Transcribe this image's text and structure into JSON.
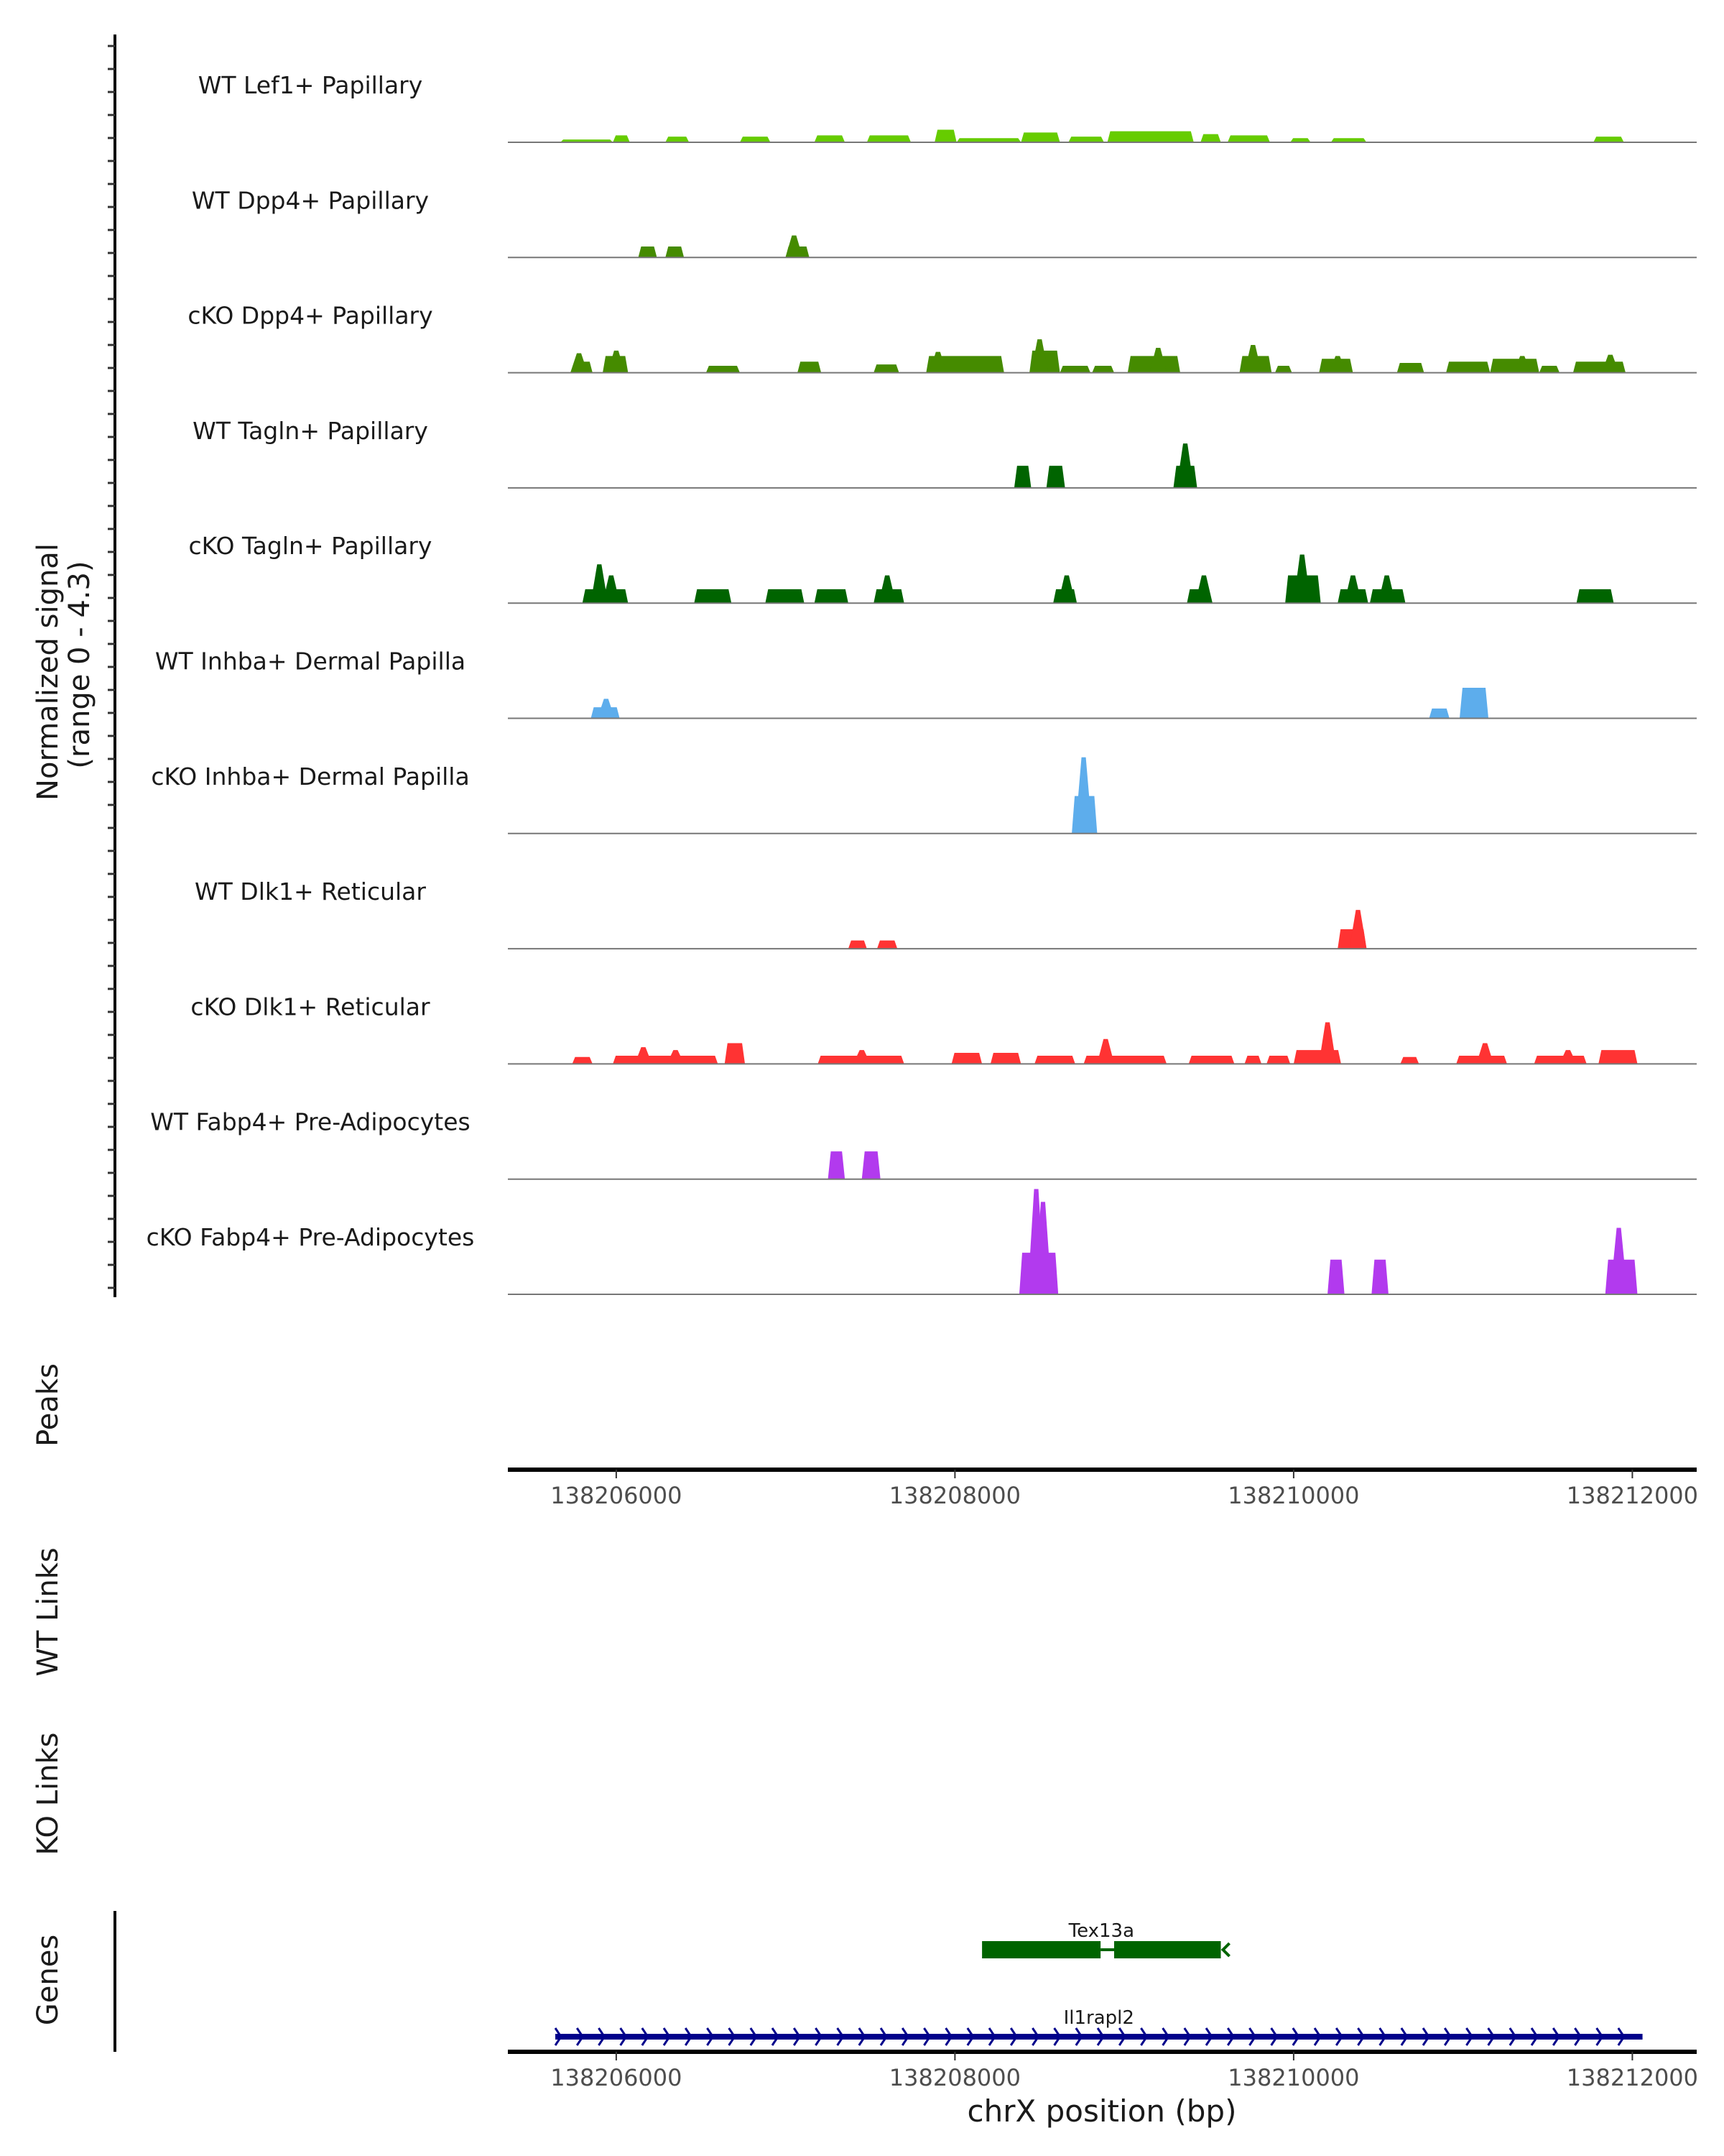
{
  "chart_data": {
    "type": "area",
    "title": "",
    "ylabel_line1": "Normalized signal",
    "ylabel_line2": "(range 0 - 4.3)",
    "xlabel": "chrX position (bp)",
    "ylim": [
      0,
      4.3
    ],
    "xlim": [
      138205360,
      138212380
    ],
    "x_ticks": [
      "138206000",
      "138208000",
      "138210000",
      "138212000"
    ],
    "x_tick_values": [
      138206000,
      138208000,
      138210000,
      138212000
    ],
    "panel_labels": {
      "peaks": "Peaks",
      "wt_links": "WT Links",
      "ko_links": "KO Links",
      "genes": "Genes"
    },
    "tracks": [
      {
        "name": "WT Lef1+ Papillary",
        "color": "#66CC00",
        "segments": [
          [
            138205670,
            138205980,
            0.11
          ],
          [
            138205980,
            138206080,
            0.27
          ],
          [
            138206290,
            138206430,
            0.22
          ],
          [
            138206730,
            138206910,
            0.22
          ],
          [
            138207170,
            138207350,
            0.27
          ],
          [
            138207480,
            138207740,
            0.27
          ],
          [
            138207880,
            138208010,
            0.49
          ],
          [
            138208010,
            138208390,
            0.16
          ],
          [
            138208390,
            138208620,
            0.38
          ],
          [
            138208670,
            138208880,
            0.22
          ],
          [
            138208900,
            138209410,
            0.43
          ],
          [
            138209450,
            138209570,
            0.32
          ],
          [
            138209610,
            138209860,
            0.27
          ],
          [
            138209980,
            138210100,
            0.16
          ],
          [
            138210220,
            138210430,
            0.16
          ],
          [
            138211770,
            138211950,
            0.22
          ]
        ],
        "spikes": []
      },
      {
        "name": "WT Dpp4+ Papillary",
        "color": "#458B00",
        "segments": [
          [
            138206130,
            138206240,
            0.43
          ],
          [
            138206290,
            138206400,
            0.43
          ],
          [
            138207000,
            138207140,
            0.43
          ]
        ],
        "spikes": [
          [
            138207050,
            0.86
          ]
        ]
      },
      {
        "name": "cKO Dpp4+ Papillary",
        "color": "#458B00",
        "segments": [
          [
            138205740,
            138205860,
            0.43
          ],
          [
            138205920,
            138206070,
            0.65
          ],
          [
            138206530,
            138206730,
            0.27
          ],
          [
            138207070,
            138207210,
            0.43
          ],
          [
            138207520,
            138207670,
            0.32
          ],
          [
            138207830,
            138208290,
            0.65
          ],
          [
            138208440,
            138208620,
            0.86
          ],
          [
            138208620,
            138208800,
            0.27
          ],
          [
            138208810,
            138208940,
            0.27
          ],
          [
            138209020,
            138209330,
            0.65
          ],
          [
            138209680,
            138209870,
            0.65
          ],
          [
            138209890,
            138209990,
            0.27
          ],
          [
            138210150,
            138210350,
            0.54
          ],
          [
            138210610,
            138210770,
            0.38
          ],
          [
            138210900,
            138211160,
            0.43
          ],
          [
            138211160,
            138211450,
            0.54
          ],
          [
            138211450,
            138211570,
            0.27
          ],
          [
            138211650,
            138211960,
            0.43
          ]
        ],
        "spikes": [
          [
            138205780,
            0.76
          ],
          [
            138206000,
            0.86
          ],
          [
            138207900,
            0.81
          ],
          [
            138208500,
            1.3
          ],
          [
            138209200,
            0.97
          ],
          [
            138209760,
            1.08
          ],
          [
            138210260,
            0.65
          ],
          [
            138211350,
            0.65
          ],
          [
            138211870,
            0.7
          ]
        ]
      },
      {
        "name": "WT Tagln+ Papillary",
        "color": "#006400",
        "segments": [
          [
            138208350,
            138208450,
            0.86
          ],
          [
            138208540,
            138208650,
            0.86
          ],
          [
            138209290,
            138209430,
            0.86
          ]
        ],
        "spikes": [
          [
            138209360,
            1.73
          ]
        ]
      },
      {
        "name": "cKO Tagln+ Papillary",
        "color": "#006400",
        "segments": [
          [
            138205800,
            138206070,
            0.54
          ],
          [
            138206460,
            138206680,
            0.54
          ],
          [
            138206880,
            138207110,
            0.54
          ],
          [
            138207170,
            138207370,
            0.54
          ],
          [
            138207520,
            138207700,
            0.54
          ],
          [
            138208580,
            138208720,
            0.54
          ],
          [
            138209370,
            138209510,
            0.54
          ],
          [
            138209950,
            138210160,
            1.08
          ],
          [
            138210260,
            138210440,
            0.54
          ],
          [
            138210450,
            138210660,
            0.54
          ],
          [
            138211670,
            138211890,
            0.54
          ]
        ],
        "spikes": [
          [
            138205900,
            1.51
          ],
          [
            138205970,
            1.08
          ],
          [
            138207600,
            1.08
          ],
          [
            138208660,
            1.08
          ],
          [
            138209470,
            1.08
          ],
          [
            138210050,
            1.89
          ],
          [
            138210350,
            1.08
          ],
          [
            138210550,
            1.08
          ]
        ]
      },
      {
        "name": "WT Inhba+ Dermal Papilla",
        "color": "#5DADEC",
        "segments": [
          [
            138205850,
            138206020,
            0.43
          ],
          [
            138210800,
            138210920,
            0.38
          ],
          [
            138210980,
            138211150,
            1.19
          ]
        ],
        "spikes": [
          [
            138205940,
            0.76
          ]
        ]
      },
      {
        "name": "cKO Inhba+ Dermal Papilla",
        "color": "#5DADEC",
        "segments": [
          [
            138208690,
            138208840,
            1.46
          ]
        ],
        "spikes": [
          [
            138208760,
            2.97
          ]
        ]
      },
      {
        "name": "WT Dlk1+ Reticular",
        "color": "#FF3333",
        "segments": [
          [
            138207370,
            138207480,
            0.32
          ],
          [
            138207540,
            138207660,
            0.32
          ],
          [
            138210260,
            138210430,
            0.76
          ]
        ],
        "spikes": [
          [
            138210380,
            1.51
          ]
        ]
      },
      {
        "name": "cKO Dlk1+ Reticular",
        "color": "#FF3333",
        "segments": [
          [
            138205740,
            138205860,
            0.27
          ],
          [
            138205980,
            138206600,
            0.32
          ],
          [
            138206640,
            138206760,
            0.81
          ],
          [
            138207190,
            138207700,
            0.32
          ],
          [
            138207980,
            138208160,
            0.43
          ],
          [
            138208210,
            138208390,
            0.43
          ],
          [
            138208470,
            138208710,
            0.32
          ],
          [
            138208760,
            138209250,
            0.32
          ],
          [
            138209380,
            138209650,
            0.32
          ],
          [
            138209710,
            138209810,
            0.32
          ],
          [
            138209840,
            138209980,
            0.32
          ],
          [
            138210000,
            138210280,
            0.54
          ],
          [
            138210630,
            138210740,
            0.27
          ],
          [
            138210960,
            138211260,
            0.32
          ],
          [
            138211420,
            138211730,
            0.32
          ],
          [
            138211800,
            138212030,
            0.54
          ]
        ],
        "spikes": [
          [
            138206160,
            0.65
          ],
          [
            138206350,
            0.54
          ],
          [
            138207450,
            0.54
          ],
          [
            138208890,
            0.97
          ],
          [
            138210200,
            1.62
          ],
          [
            138211130,
            0.81
          ],
          [
            138211620,
            0.54
          ]
        ]
      },
      {
        "name": "WT Fabp4+ Pre-Adipocytes",
        "color": "#B23AEE",
        "segments": [
          [
            138207250,
            138207350,
            1.08
          ],
          [
            138207450,
            138207560,
            1.08
          ]
        ],
        "spikes": []
      },
      {
        "name": "cKO Fabp4+ Pre-Adipocytes",
        "color": "#B23AEE",
        "segments": [
          [
            138208380,
            138208610,
            1.62
          ],
          [
            138210200,
            138210300,
            1.35
          ],
          [
            138210460,
            138210560,
            1.35
          ],
          [
            138211840,
            138212030,
            1.35
          ]
        ],
        "spikes": [
          [
            138208480,
            4.1
          ],
          [
            138208520,
            3.6
          ],
          [
            138211920,
            2.59
          ]
        ]
      }
    ],
    "genes": [
      {
        "name": "Tex13a",
        "strand": "-",
        "start": 138208160,
        "end": 138209570,
        "intron": [
          138208860,
          138208940
        ],
        "color": "#006400"
      },
      {
        "name": "Il1rapl2",
        "strand": "+",
        "start": 138205640,
        "end": 138212060,
        "color": "#00008B"
      }
    ]
  }
}
